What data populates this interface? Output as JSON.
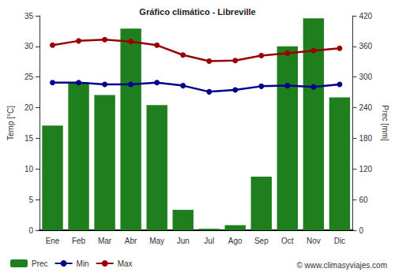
{
  "chart_data": {
    "type": "bar",
    "title": "Gráfico climático - Libreville",
    "categories": [
      "Ene",
      "Feb",
      "Mar",
      "Abr",
      "May",
      "Jun",
      "Jul",
      "Ago",
      "Sep",
      "Oct",
      "Nov",
      "Dic"
    ],
    "y_label": "Temp [°C]",
    "y2_label": "Prec [mm]",
    "ylim": [
      0,
      35
    ],
    "yticks": [
      0,
      5,
      10,
      15,
      20,
      25,
      30,
      35
    ],
    "y2lim": [
      0,
      420
    ],
    "y2ticks": [
      0,
      60,
      120,
      180,
      240,
      300,
      360,
      420
    ],
    "grid": false,
    "legend": "bottom",
    "annotation": "© www.climasyviajes.com",
    "series": [
      {
        "name": "Prec",
        "type": "bar",
        "axis": "y2",
        "color": "#1f7f1f",
        "values": [
          205,
          290,
          265,
          395,
          245,
          40,
          3,
          10,
          105,
          360,
          415,
          260
        ]
      },
      {
        "name": "Min",
        "type": "line",
        "color": "#00008b",
        "marker": "circle",
        "values": [
          24.1,
          24.1,
          23.8,
          23.8,
          24.1,
          23.6,
          22.6,
          22.9,
          23.5,
          23.6,
          23.4,
          23.8
        ]
      },
      {
        "name": "Max",
        "type": "line",
        "color": "#990000",
        "marker": "circle",
        "values": [
          30.2,
          30.9,
          31.1,
          30.8,
          30.2,
          28.6,
          27.6,
          27.7,
          28.5,
          28.9,
          29.3,
          29.7
        ]
      }
    ]
  }
}
